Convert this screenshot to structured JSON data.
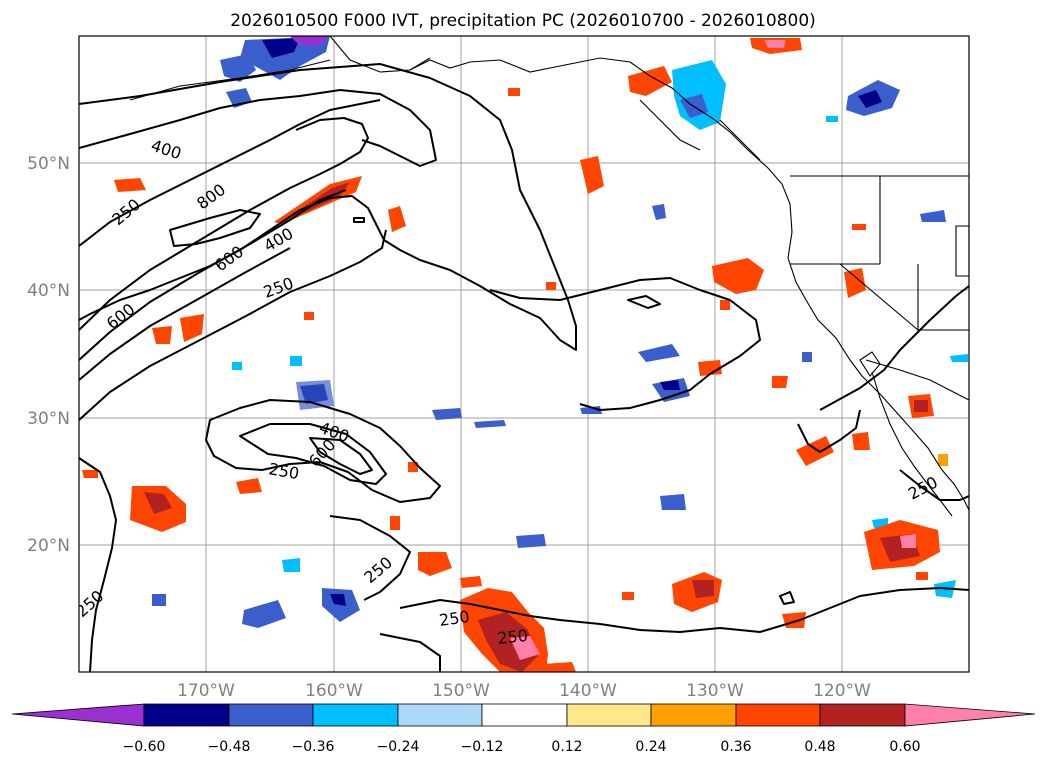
{
  "title": "2026010500 F000 IVT, precipitation PC (2026010700 - 2026010800)",
  "map": {
    "lat_labels": [
      "50°N",
      "40°N",
      "30°N",
      "20°N"
    ],
    "lon_labels": [
      "170°W",
      "160°W",
      "150°W",
      "140°W",
      "130°W",
      "120°W"
    ],
    "ivt_contour_levels": [
      250,
      400,
      600,
      800
    ],
    "contour_labels": [
      "400",
      "250",
      "800",
      "600",
      "400",
      "250",
      "600",
      "400",
      "600",
      "250",
      "250",
      "250",
      "250",
      "250",
      "250"
    ]
  },
  "colorbar": {
    "ticks": [
      "−0.60",
      "−0.48",
      "−0.36",
      "−0.24",
      "−0.12",
      "0.12",
      "0.24",
      "0.36",
      "0.48",
      "0.60"
    ],
    "colors": [
      "#9b30d0",
      "#00008b",
      "#3a5fcd",
      "#00bfff",
      "#add8f8",
      "#ffffff",
      "#ffe88a",
      "#ffa000",
      "#ff4500",
      "#b22222",
      "#ff80a8"
    ]
  }
}
